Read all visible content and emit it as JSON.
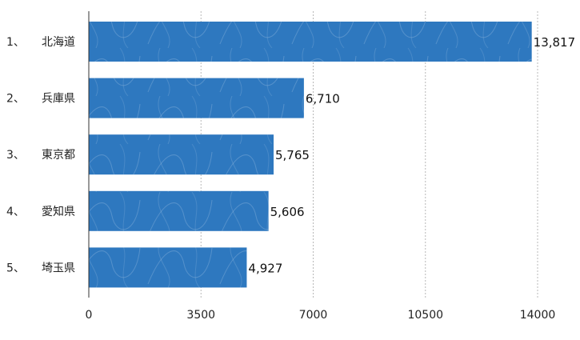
{
  "chart_data": {
    "type": "bar",
    "orientation": "horizontal",
    "categories": [
      "北海道",
      "兵庫県",
      "東京都",
      "愛知県",
      "埼玉県"
    ],
    "ranks": [
      "1、",
      "2、",
      "3、",
      "4、",
      "5、"
    ],
    "values": [
      13817,
      6710,
      5765,
      5606,
      4927
    ],
    "value_labels": [
      "13,817",
      "6,710",
      "5,765",
      "5,606",
      "4,927"
    ],
    "xlim": [
      0,
      14000
    ],
    "x_ticks": [
      0,
      3500,
      7000,
      10500,
      14000
    ],
    "x_tick_labels": [
      "0",
      "3500",
      "7000",
      "10500",
      "14000"
    ],
    "grid": "vertical dotted",
    "bar_color": "#2e78bf",
    "title": "",
    "xlabel": "",
    "ylabel": ""
  }
}
